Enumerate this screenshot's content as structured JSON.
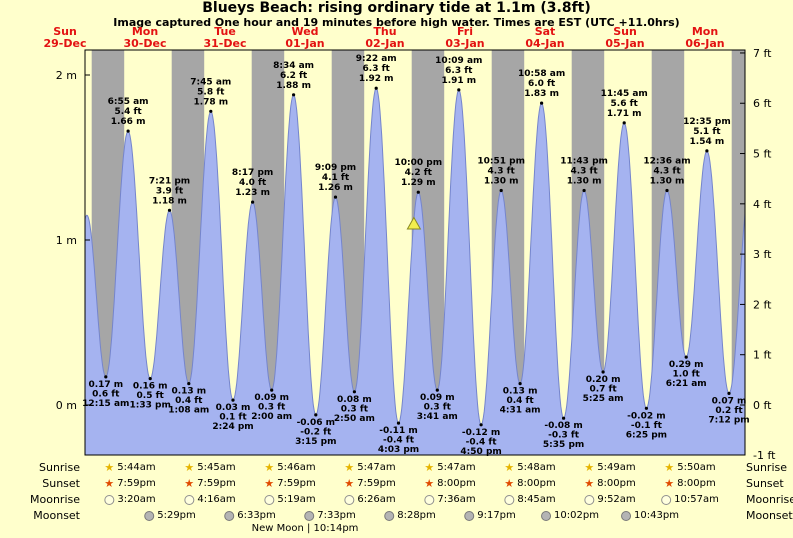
{
  "colors": {
    "background": "#ffffcc",
    "night_band": "#a6a6a6",
    "tide_fill": "#a5b3f0",
    "tide_stroke": "#7585cc",
    "date_red": "#e31212",
    "marker_fill": "#f2ee4e",
    "marker_stroke": "#8a8a22"
  },
  "chart_data": {
    "type": "area",
    "title": "Blueys Beach: rising  ordinary tide at 1.1m (3.8ft)",
    "subtitle": "Image captured One hour and 19 minutes before high water. Times are EST (UTC +11.0hrs)",
    "days": [
      {
        "name": "Sun",
        "date": "29-Dec"
      },
      {
        "name": "Mon",
        "date": "30-Dec"
      },
      {
        "name": "Tue",
        "date": "31-Dec"
      },
      {
        "name": "Wed",
        "date": "01-Jan"
      },
      {
        "name": "Thu",
        "date": "02-Jan"
      },
      {
        "name": "Fri",
        "date": "03-Jan"
      },
      {
        "name": "Sat",
        "date": "04-Jan"
      },
      {
        "name": "Sun",
        "date": "05-Jan"
      },
      {
        "name": "Mon",
        "date": "06-Jan"
      }
    ],
    "y_axis_m": {
      "ticks": [
        0,
        1,
        2
      ],
      "unit": "m"
    },
    "y_axis_ft": {
      "ticks": [
        -1,
        0,
        1,
        2,
        3,
        4,
        5,
        6,
        7
      ],
      "unit": "ft"
    },
    "night": {
      "sunset_hour": 20,
      "sunrise_hour": 5.75
    },
    "current_marker": {
      "day": 4,
      "hour": 20.68,
      "height": 1.1
    },
    "extremes": [
      {
        "day": 0,
        "hour": 12.83,
        "height": 0.2,
        "kind": "low",
        "time": "",
        "ft": "",
        "show": false
      },
      {
        "day": 0,
        "hour": 18.58,
        "height": 1.15,
        "kind": "high",
        "time": "",
        "ft": "",
        "show": false
      },
      {
        "day": 1,
        "hour": 0.25,
        "height": 0.17,
        "kind": "low",
        "time": "12:15 am",
        "ft": "0.6 ft",
        "show": true
      },
      {
        "day": 1,
        "hour": 6.92,
        "height": 1.66,
        "kind": "high",
        "time": "6:55 am",
        "ft": "5.4 ft",
        "show": true
      },
      {
        "day": 1,
        "hour": 13.55,
        "height": 0.16,
        "kind": "low",
        "time": "1:33 pm",
        "ft": "0.5 ft",
        "show": true
      },
      {
        "day": 1,
        "hour": 19.35,
        "height": 1.18,
        "kind": "high",
        "time": "7:21 pm",
        "ft": "3.9 ft",
        "show": true
      },
      {
        "day": 2,
        "hour": 1.13,
        "height": 0.13,
        "kind": "low",
        "time": "1:08 am",
        "ft": "0.4 ft",
        "show": true
      },
      {
        "day": 2,
        "hour": 7.75,
        "height": 1.78,
        "kind": "high",
        "time": "7:45 am",
        "ft": "5.8 ft",
        "show": true
      },
      {
        "day": 2,
        "hour": 14.4,
        "height": 0.03,
        "kind": "low",
        "time": "2:24 pm",
        "ft": "0.1 ft",
        "show": true
      },
      {
        "day": 2,
        "hour": 20.28,
        "height": 1.23,
        "kind": "high",
        "time": "8:17 pm",
        "ft": "4.0 ft",
        "show": true
      },
      {
        "day": 3,
        "hour": 2.0,
        "height": 0.09,
        "kind": "low",
        "time": "2:00 am",
        "ft": "0.3 ft",
        "show": true
      },
      {
        "day": 3,
        "hour": 8.57,
        "height": 1.88,
        "kind": "high",
        "time": "8:34 am",
        "ft": "6.2 ft",
        "show": true
      },
      {
        "day": 3,
        "hour": 15.25,
        "height": -0.06,
        "kind": "low",
        "time": "3:15 pm",
        "ft": "-0.2 ft",
        "show": true
      },
      {
        "day": 3,
        "hour": 21.15,
        "height": 1.26,
        "kind": "high",
        "time": "9:09 pm",
        "ft": "4.1 ft",
        "show": true
      },
      {
        "day": 4,
        "hour": 2.83,
        "height": 0.08,
        "kind": "low",
        "time": "2:50 am",
        "ft": "0.3 ft",
        "show": true
      },
      {
        "day": 4,
        "hour": 9.37,
        "height": 1.92,
        "kind": "high",
        "time": "9:22 am",
        "ft": "6.3 ft",
        "show": true
      },
      {
        "day": 4,
        "hour": 16.05,
        "height": -0.11,
        "kind": "low",
        "time": "4:03 pm",
        "ft": "-0.4 ft",
        "show": true
      },
      {
        "day": 4,
        "hour": 22.0,
        "height": 1.29,
        "kind": "high",
        "time": "10:00 pm",
        "ft": "4.2 ft",
        "show": true
      },
      {
        "day": 5,
        "hour": 3.68,
        "height": 0.09,
        "kind": "low",
        "time": "3:41 am",
        "ft": "0.3 ft",
        "show": true
      },
      {
        "day": 5,
        "hour": 10.15,
        "height": 1.91,
        "kind": "high",
        "time": "10:09 am",
        "ft": "6.3 ft",
        "show": true
      },
      {
        "day": 5,
        "hour": 16.83,
        "height": -0.12,
        "kind": "low",
        "time": "4:50 pm",
        "ft": "-0.4 ft",
        "show": true
      },
      {
        "day": 5,
        "hour": 22.85,
        "height": 1.3,
        "kind": "high",
        "time": "10:51 pm",
        "ft": "4.3 ft",
        "show": true
      },
      {
        "day": 6,
        "hour": 4.52,
        "height": 0.13,
        "kind": "low",
        "time": "4:31 am",
        "ft": "0.4 ft",
        "show": true
      },
      {
        "day": 6,
        "hour": 10.97,
        "height": 1.83,
        "kind": "high",
        "time": "10:58 am",
        "ft": "6.0 ft",
        "show": true
      },
      {
        "day": 6,
        "hour": 17.58,
        "height": -0.08,
        "kind": "low",
        "time": "5:35 pm",
        "ft": "-0.3 ft",
        "show": true
      },
      {
        "day": 6,
        "hour": 23.72,
        "height": 1.3,
        "kind": "high",
        "time": "11:43 pm",
        "ft": "4.3 ft",
        "show": true
      },
      {
        "day": 7,
        "hour": 5.42,
        "height": 0.2,
        "kind": "low",
        "time": "5:25 am",
        "ft": "0.7 ft",
        "show": true
      },
      {
        "day": 7,
        "hour": 11.75,
        "height": 1.71,
        "kind": "high",
        "time": "11:45 am",
        "ft": "5.6 ft",
        "show": true
      },
      {
        "day": 7,
        "hour": 18.42,
        "height": -0.02,
        "kind": "low",
        "time": "6:25 pm",
        "ft": "-0.1 ft",
        "show": true
      },
      {
        "day": 8,
        "hour": 0.6,
        "height": 1.3,
        "kind": "high",
        "time": "12:36 am",
        "ft": "4.3 ft",
        "show": true
      },
      {
        "day": 8,
        "hour": 6.35,
        "height": 0.29,
        "kind": "low",
        "time": "6:21 am",
        "ft": "1.0 ft",
        "show": true
      },
      {
        "day": 8,
        "hour": 12.58,
        "height": 1.54,
        "kind": "high",
        "time": "12:35 pm",
        "ft": "5.1 ft",
        "show": true
      },
      {
        "day": 8,
        "hour": 19.2,
        "height": 0.07,
        "kind": "low",
        "time": "7:12 pm",
        "ft": "0.2 ft",
        "show": true
      },
      {
        "day": 9,
        "hour": 1.5,
        "height": 1.33,
        "kind": "high",
        "time": "",
        "ft": "",
        "show": false
      }
    ]
  },
  "astro": {
    "moon_phase": "New Moon | 10:14pm",
    "rows": [
      {
        "key": "sunrise",
        "label": "Sunrise",
        "icon": "star",
        "icon_color": "#e6b400",
        "icon_border": "#7a5c00",
        "entries": [
          {
            "day": 1,
            "time": "5:44am"
          },
          {
            "day": 2,
            "time": "5:45am"
          },
          {
            "day": 3,
            "time": "5:46am"
          },
          {
            "day": 4,
            "time": "5:47am"
          },
          {
            "day": 5,
            "time": "5:47am"
          },
          {
            "day": 6,
            "time": "5:48am"
          },
          {
            "day": 7,
            "time": "5:49am"
          },
          {
            "day": 8,
            "time": "5:50am"
          }
        ]
      },
      {
        "key": "sunset",
        "label": "Sunset",
        "icon": "star",
        "icon_color": "#e04a00",
        "icon_border": "#7a2800",
        "entries": [
          {
            "day": 1,
            "time": "7:59pm"
          },
          {
            "day": 2,
            "time": "7:59pm"
          },
          {
            "day": 3,
            "time": "7:59pm"
          },
          {
            "day": 4,
            "time": "7:59pm"
          },
          {
            "day": 5,
            "time": "8:00pm"
          },
          {
            "day": 6,
            "time": "8:00pm"
          },
          {
            "day": 7,
            "time": "8:00pm"
          },
          {
            "day": 8,
            "time": "8:00pm"
          }
        ]
      },
      {
        "key": "moonrise",
        "label": "Moonrise",
        "icon": "circle",
        "icon_color": "#ffffdf",
        "icon_border": "#8f8f8f",
        "entries": [
          {
            "day": 1,
            "time": "3:20am"
          },
          {
            "day": 2,
            "time": "4:16am"
          },
          {
            "day": 3,
            "time": "5:19am"
          },
          {
            "day": 4,
            "time": "6:26am"
          },
          {
            "day": 5,
            "time": "7:36am"
          },
          {
            "day": 6,
            "time": "8:45am"
          },
          {
            "day": 7,
            "time": "9:52am"
          },
          {
            "day": 8,
            "time": "10:57am"
          }
        ]
      },
      {
        "key": "moonset",
        "label": "Moonset",
        "icon": "circle",
        "icon_color": "#b4b4b4",
        "icon_border": "#787878",
        "entries": [
          {
            "day": 1,
            "time": "5:29pm"
          },
          {
            "day": 2,
            "time": "6:33pm"
          },
          {
            "day": 3,
            "time": "7:33pm"
          },
          {
            "day": 4,
            "time": "8:28pm"
          },
          {
            "day": 5,
            "time": "9:17pm"
          },
          {
            "day": 6,
            "time": "10:02pm"
          },
          {
            "day": 7,
            "time": "10:43pm"
          }
        ]
      }
    ]
  }
}
